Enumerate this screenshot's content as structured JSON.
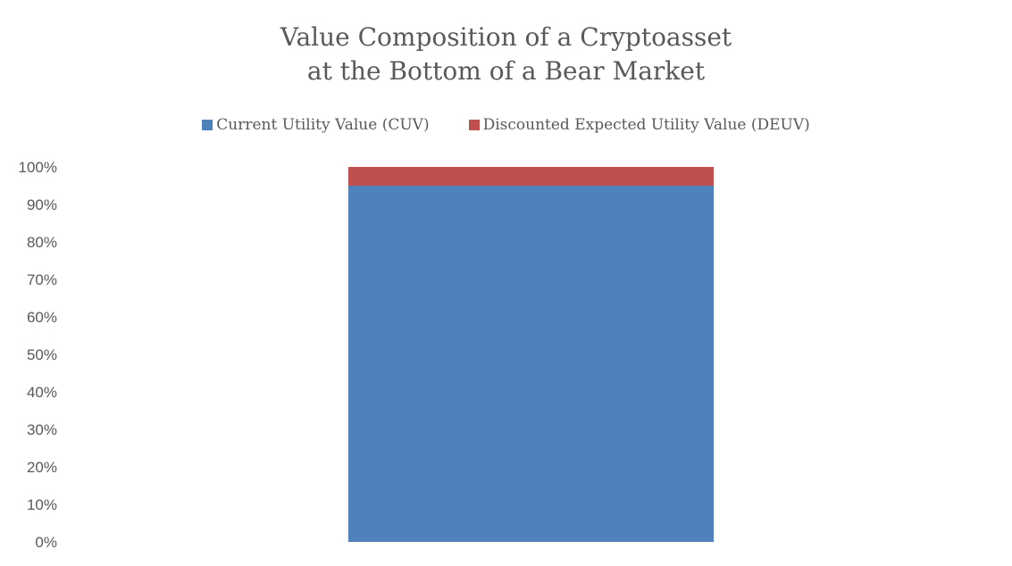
{
  "chart_data": {
    "type": "bar",
    "stacked": true,
    "title_lines": [
      "Value Composition of a Cryptoasset",
      "at the Bottom of a Bear Market"
    ],
    "categories": [
      ""
    ],
    "series": [
      {
        "name": "Current Utility Value (CUV)",
        "values": [
          95
        ],
        "color": "#4F81BD"
      },
      {
        "name": "Discounted Expected Utility Value (DEUV)",
        "values": [
          5
        ],
        "color": "#C0504D"
      }
    ],
    "ylim": [
      0,
      100
    ],
    "y_ticks": [
      "0%",
      "10%",
      "20%",
      "30%",
      "40%",
      "50%",
      "60%",
      "70%",
      "80%",
      "90%",
      "100%"
    ],
    "legend_position": "top",
    "grid": false
  }
}
